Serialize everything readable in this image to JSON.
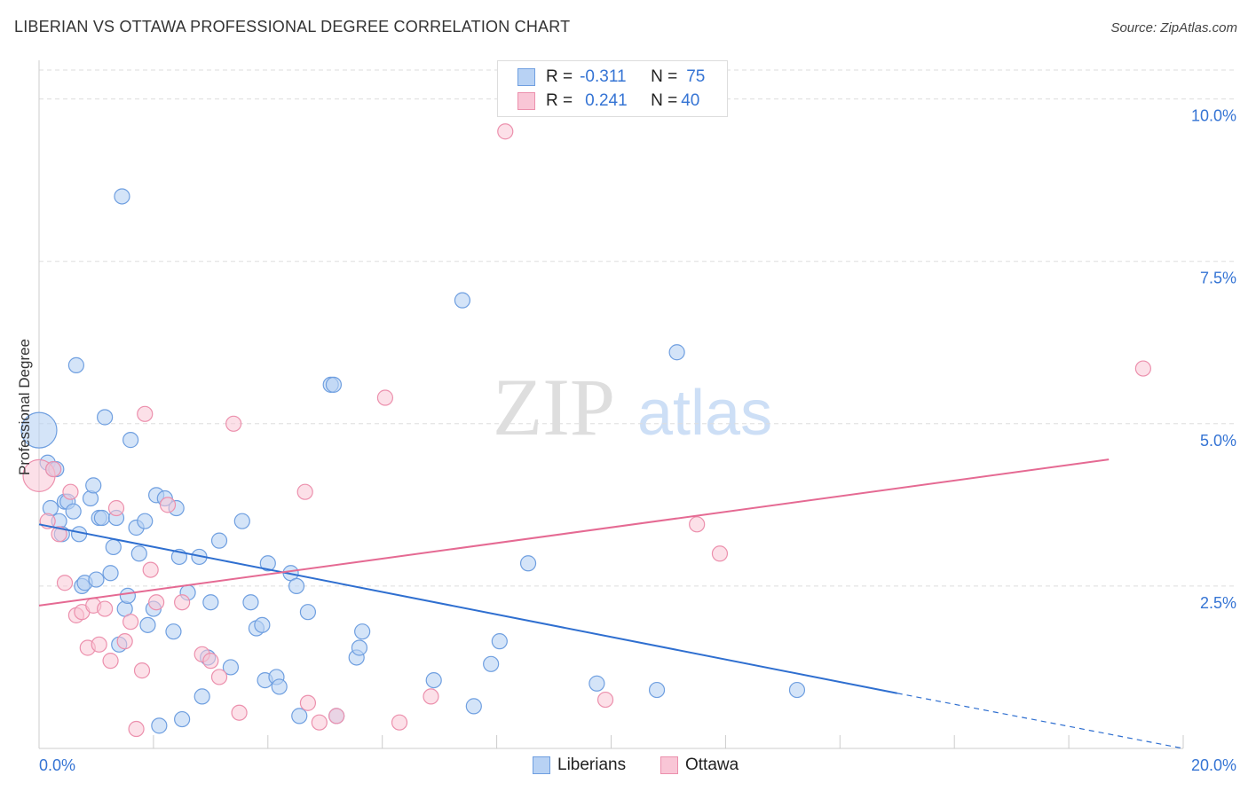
{
  "title": "LIBERIAN VS OTTAWA PROFESSIONAL DEGREE CORRELATION CHART",
  "source": "Source: ZipAtlas.com",
  "watermark": {
    "zip": "ZIP",
    "atlas": "atlas"
  },
  "legend": {
    "r_label": "R =",
    "n_label": "N =",
    "liberians": {
      "r": "-0.311",
      "n": "75"
    },
    "ottawa": {
      "r": "0.241",
      "n": "40"
    }
  },
  "colors": {
    "liberians_fill": "#b8d2f4",
    "liberians_stroke": "#6f9fe0",
    "liberians_line": "#2f6fd0",
    "ottawa_fill": "#f9c6d6",
    "ottawa_stroke": "#ec90ad",
    "ottawa_line": "#e56a93",
    "axis_label": "#3574d4",
    "grid": "#dddddd"
  },
  "chart_data": {
    "type": "scatter",
    "title": "LIBERIAN VS OTTAWA PROFESSIONAL DEGREE CORRELATION CHART",
    "xlabel": "",
    "ylabel": "Professional Degree",
    "xlim": [
      0,
      20
    ],
    "ylim": [
      0,
      10.5
    ],
    "x_tick_labels": [
      "0.0%",
      "20.0%"
    ],
    "y_ticks": [
      2.5,
      5.0,
      7.5,
      10.0
    ],
    "y_tick_labels": [
      "2.5%",
      "5.0%",
      "7.5%",
      "10.0%"
    ],
    "grid": true,
    "legend_position": "top-center",
    "series": [
      {
        "name": "Liberians",
        "points": [
          [
            0.0,
            4.9
          ],
          [
            0.15,
            4.4
          ],
          [
            0.2,
            3.7
          ],
          [
            0.25,
            4.3
          ],
          [
            0.3,
            4.3
          ],
          [
            0.35,
            3.5
          ],
          [
            0.4,
            3.3
          ],
          [
            0.45,
            3.8
          ],
          [
            0.5,
            3.8
          ],
          [
            0.6,
            3.65
          ],
          [
            0.65,
            5.9
          ],
          [
            0.7,
            3.3
          ],
          [
            0.75,
            2.5
          ],
          [
            0.8,
            2.55
          ],
          [
            0.9,
            3.85
          ],
          [
            0.95,
            4.05
          ],
          [
            1.0,
            2.6
          ],
          [
            1.05,
            3.55
          ],
          [
            1.1,
            3.55
          ],
          [
            1.15,
            5.1
          ],
          [
            1.25,
            2.7
          ],
          [
            1.3,
            3.1
          ],
          [
            1.35,
            3.55
          ],
          [
            1.4,
            1.6
          ],
          [
            1.45,
            8.5
          ],
          [
            1.5,
            2.15
          ],
          [
            1.55,
            2.35
          ],
          [
            1.6,
            4.75
          ],
          [
            1.7,
            3.4
          ],
          [
            1.75,
            3.0
          ],
          [
            1.85,
            3.5
          ],
          [
            1.9,
            1.9
          ],
          [
            2.0,
            2.15
          ],
          [
            2.05,
            3.9
          ],
          [
            2.1,
            0.35
          ],
          [
            2.2,
            3.85
          ],
          [
            2.35,
            1.8
          ],
          [
            2.4,
            3.7
          ],
          [
            2.45,
            2.95
          ],
          [
            2.5,
            0.45
          ],
          [
            2.6,
            2.4
          ],
          [
            2.8,
            2.95
          ],
          [
            2.85,
            0.8
          ],
          [
            2.95,
            1.4
          ],
          [
            3.0,
            2.25
          ],
          [
            3.15,
            3.2
          ],
          [
            3.35,
            1.25
          ],
          [
            3.55,
            3.5
          ],
          [
            3.7,
            2.25
          ],
          [
            3.8,
            1.85
          ],
          [
            3.9,
            1.9
          ],
          [
            3.95,
            1.05
          ],
          [
            4.0,
            2.85
          ],
          [
            4.15,
            1.1
          ],
          [
            4.2,
            0.95
          ],
          [
            4.4,
            2.7
          ],
          [
            4.5,
            2.5
          ],
          [
            4.55,
            0.5
          ],
          [
            4.7,
            2.1
          ],
          [
            5.1,
            5.6
          ],
          [
            5.15,
            5.6
          ],
          [
            5.55,
            1.4
          ],
          [
            5.6,
            1.55
          ],
          [
            5.65,
            1.8
          ],
          [
            6.9,
            1.05
          ],
          [
            7.4,
            6.9
          ],
          [
            7.6,
            0.65
          ],
          [
            7.9,
            1.3
          ],
          [
            8.05,
            1.65
          ],
          [
            8.55,
            2.85
          ],
          [
            9.75,
            1.0
          ],
          [
            10.8,
            0.9
          ],
          [
            11.15,
            6.1
          ],
          [
            13.25,
            0.9
          ],
          [
            5.2,
            0.5
          ]
        ]
      },
      {
        "name": "Ottawa",
        "points": [
          [
            0.0,
            4.2
          ],
          [
            0.15,
            3.5
          ],
          [
            0.25,
            4.3
          ],
          [
            0.35,
            3.3
          ],
          [
            0.45,
            2.55
          ],
          [
            0.55,
            3.95
          ],
          [
            0.65,
            2.05
          ],
          [
            0.75,
            2.1
          ],
          [
            0.85,
            1.55
          ],
          [
            0.95,
            2.2
          ],
          [
            1.05,
            1.6
          ],
          [
            1.15,
            2.15
          ],
          [
            1.25,
            1.35
          ],
          [
            1.35,
            3.7
          ],
          [
            1.5,
            1.65
          ],
          [
            1.6,
            1.95
          ],
          [
            1.7,
            0.3
          ],
          [
            1.8,
            1.2
          ],
          [
            1.85,
            5.15
          ],
          [
            1.95,
            2.75
          ],
          [
            2.05,
            2.25
          ],
          [
            2.25,
            3.75
          ],
          [
            2.5,
            2.25
          ],
          [
            2.85,
            1.45
          ],
          [
            3.0,
            1.35
          ],
          [
            3.15,
            1.1
          ],
          [
            3.4,
            5.0
          ],
          [
            3.5,
            0.55
          ],
          [
            4.65,
            3.95
          ],
          [
            4.7,
            0.7
          ],
          [
            4.9,
            0.4
          ],
          [
            5.2,
            0.5
          ],
          [
            6.05,
            5.4
          ],
          [
            6.3,
            0.4
          ],
          [
            6.85,
            0.8
          ],
          [
            8.15,
            9.5
          ],
          [
            9.9,
            0.75
          ],
          [
            11.5,
            3.45
          ],
          [
            11.9,
            3.0
          ],
          [
            19.3,
            5.85
          ]
        ]
      }
    ],
    "trend_lines": [
      {
        "series": "Liberians",
        "x": [
          0,
          15
        ],
        "y": [
          3.45,
          0.85
        ],
        "dashed_extension_to": [
          20,
          0.0
        ]
      },
      {
        "series": "Ottawa",
        "x": [
          0,
          18.7
        ],
        "y": [
          2.2,
          4.45
        ]
      }
    ]
  }
}
